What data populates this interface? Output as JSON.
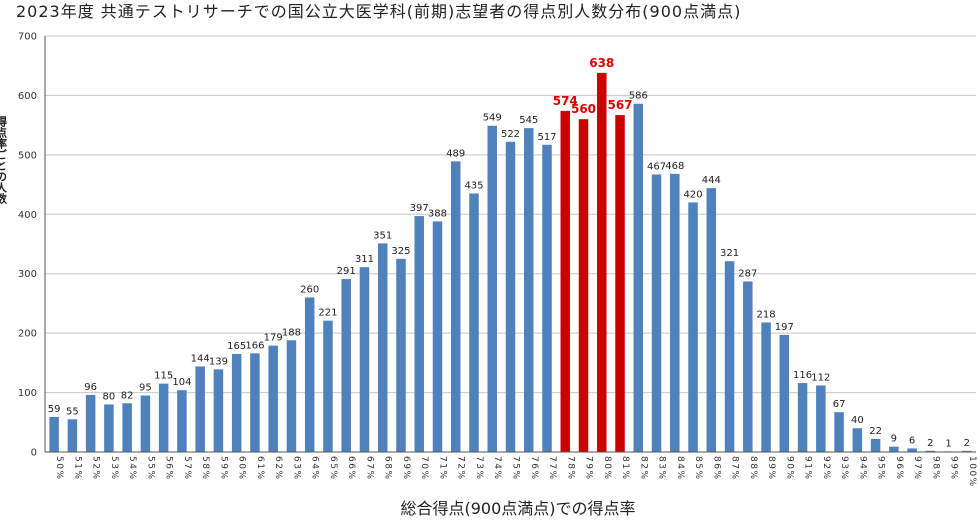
{
  "chart_data": {
    "type": "bar",
    "title": "2023年度 共通テストリサーチでの国公立大医学科(前期)志望者の得点別人数分布(900点満点)",
    "xlabel": "総合得点(900点満点)での得点率",
    "ylabel": "得点率ごとの人数",
    "ylim": [
      0,
      700
    ],
    "yticks": [
      0,
      100,
      200,
      300,
      400,
      500,
      600,
      700
    ],
    "grid": true,
    "categories": [
      "50%",
      "51%",
      "52%",
      "53%",
      "54%",
      "55%",
      "56%",
      "57%",
      "58%",
      "59%",
      "60%",
      "61%",
      "62%",
      "63%",
      "64%",
      "65%",
      "66%",
      "67%",
      "68%",
      "69%",
      "70%",
      "71%",
      "72%",
      "73%",
      "74%",
      "75%",
      "76%",
      "77%",
      "78%",
      "79%",
      "80%",
      "81%",
      "82%",
      "83%",
      "84%",
      "85%",
      "86%",
      "87%",
      "88%",
      "89%",
      "90%",
      "91%",
      "92%",
      "93%",
      "94%",
      "95%",
      "96%",
      "97%",
      "98%",
      "99%",
      "100%"
    ],
    "values": [
      59,
      55,
      96,
      80,
      82,
      95,
      115,
      104,
      144,
      139,
      165,
      166,
      179,
      188,
      260,
      221,
      291,
      311,
      351,
      325,
      397,
      388,
      489,
      435,
      549,
      522,
      545,
      517,
      574,
      560,
      638,
      567,
      586,
      467,
      468,
      420,
      444,
      321,
      287,
      218,
      197,
      116,
      112,
      67,
      40,
      22,
      9,
      6,
      2,
      1,
      2
    ],
    "highlighted_categories": [
      "78%",
      "79%",
      "80%",
      "81%"
    ],
    "colors": {
      "bar": "#4f81bd",
      "highlight": "#cc0000",
      "highlight_label": "#dd0000"
    }
  }
}
